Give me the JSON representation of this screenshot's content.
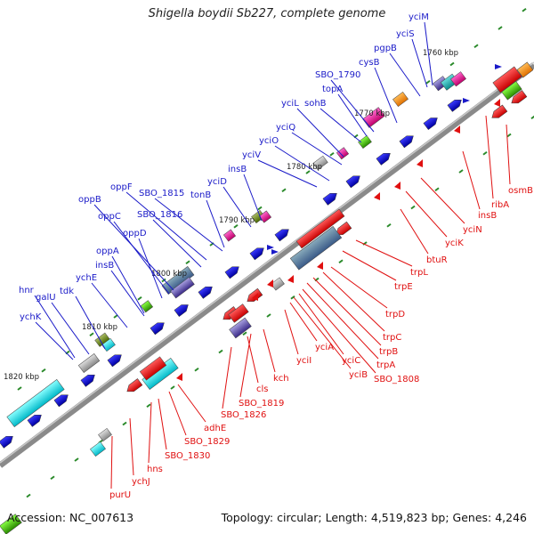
{
  "title": "Shigella boydii Sb227, complete genome",
  "footer": {
    "accession": "Accession: NC_007613",
    "topology": "Topology: circular; Length: 4,519,823 bp; Genes: 4,246"
  },
  "colors": {
    "forward_label": "#1a1ac8",
    "reverse_label": "#e01010",
    "backbone": "#777777"
  },
  "kbp_labels": [
    "1760 kbp",
    "1770 kbp",
    "1780 kbp",
    "1790 kbp",
    "1800 kbp",
    "1810 kbp",
    "1820 kbp"
  ],
  "forward_genes": [
    "yciM",
    "yciS",
    "pgpB",
    "cysB",
    "SBO_1790",
    "topA",
    "sohB",
    "yciL",
    "yciQ",
    "yciO",
    "yciV",
    "insB",
    "yciD",
    "tonB",
    "SBO_1815",
    "oppF",
    "SBO_1816",
    "oppB",
    "oppC",
    "oppD",
    "oppA",
    "insB",
    "ychE",
    "tdk",
    "galU",
    "hnr",
    "ychK"
  ],
  "reverse_genes": [
    "osmB",
    "ribA",
    "insB",
    "yciN",
    "yciK",
    "btuR",
    "trpL",
    "trpE",
    "trpD",
    "trpC",
    "trpB",
    "trpA",
    "SBO_1808",
    "yciC",
    "yciB",
    "yciA",
    "yciI",
    "kch",
    "SBO_1819",
    "cls",
    "SBO_1826",
    "adhE",
    "SBO_1829",
    "SBO_1830",
    "hns",
    "ychJ",
    "purU"
  ]
}
